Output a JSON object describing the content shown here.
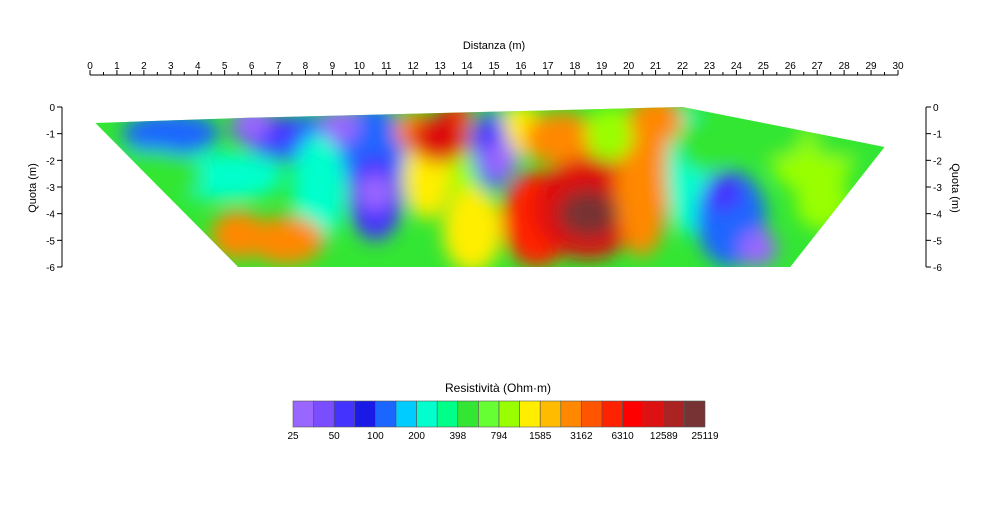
{
  "chart_data": {
    "type": "heatmap",
    "title": "",
    "xlabel": "Distanza (m)",
    "ylabel_left": "Quota (m)",
    "ylabel_right": "Quota (m)",
    "xlim": [
      0,
      30
    ],
    "ylim": [
      -6,
      0
    ],
    "x_ticks": [
      "0",
      "1",
      "2",
      "3",
      "4",
      "5",
      "6",
      "7",
      "8",
      "9",
      "10",
      "11",
      "12",
      "13",
      "14",
      "15",
      "16",
      "17",
      "18",
      "19",
      "20",
      "21",
      "22",
      "23",
      "24",
      "25",
      "26",
      "27",
      "28",
      "29",
      "30"
    ],
    "y_ticks": [
      "0",
      "-1",
      "-2",
      "-3",
      "-4",
      "-5",
      "-6"
    ],
    "section_outline": [
      [
        0.2,
        -0.6
      ],
      [
        6,
        -0.4
      ],
      [
        22,
        0
      ],
      [
        29.5,
        -1.5
      ],
      [
        26,
        -6
      ],
      [
        5.5,
        -6
      ]
    ],
    "anomalies": [
      {
        "x": 5.5,
        "y": -4.8,
        "value": 3162
      },
      {
        "x": 6.0,
        "y": -0.6,
        "value": 25
      },
      {
        "x": 9.3,
        "y": -0.7,
        "value": 25
      },
      {
        "x": 10.6,
        "y": -3.2,
        "value": 25
      },
      {
        "x": 13.0,
        "y": -1.2,
        "value": 12589
      },
      {
        "x": 14.8,
        "y": -1.2,
        "value": 50
      },
      {
        "x": 15.2,
        "y": -2.0,
        "value": 25
      },
      {
        "x": 18.5,
        "y": -4.0,
        "value": 25119
      },
      {
        "x": 21.0,
        "y": -0.5,
        "value": 3162
      },
      {
        "x": 23.5,
        "y": -3.2,
        "value": 50
      },
      {
        "x": 24.8,
        "y": -5.3,
        "value": 25
      },
      {
        "x": 25.5,
        "y": -1.0,
        "value": 398
      }
    ],
    "colorbar": {
      "title": "Resistività (Ohm·m)",
      "labels": [
        "25",
        "50",
        "100",
        "200",
        "398",
        "794",
        "1585",
        "3162",
        "6310",
        "12589",
        "25119"
      ],
      "colors": [
        "#9966ff",
        "#7a4dff",
        "#4433ff",
        "#1a1ae6",
        "#1a66ff",
        "#00ccff",
        "#00ffcc",
        "#00ff88",
        "#33e633",
        "#66ff33",
        "#99ff00",
        "#ffee00",
        "#ffbb00",
        "#ff8800",
        "#ff5500",
        "#ff2200",
        "#ff0000",
        "#dd1111",
        "#aa2222",
        "#773333"
      ]
    }
  }
}
